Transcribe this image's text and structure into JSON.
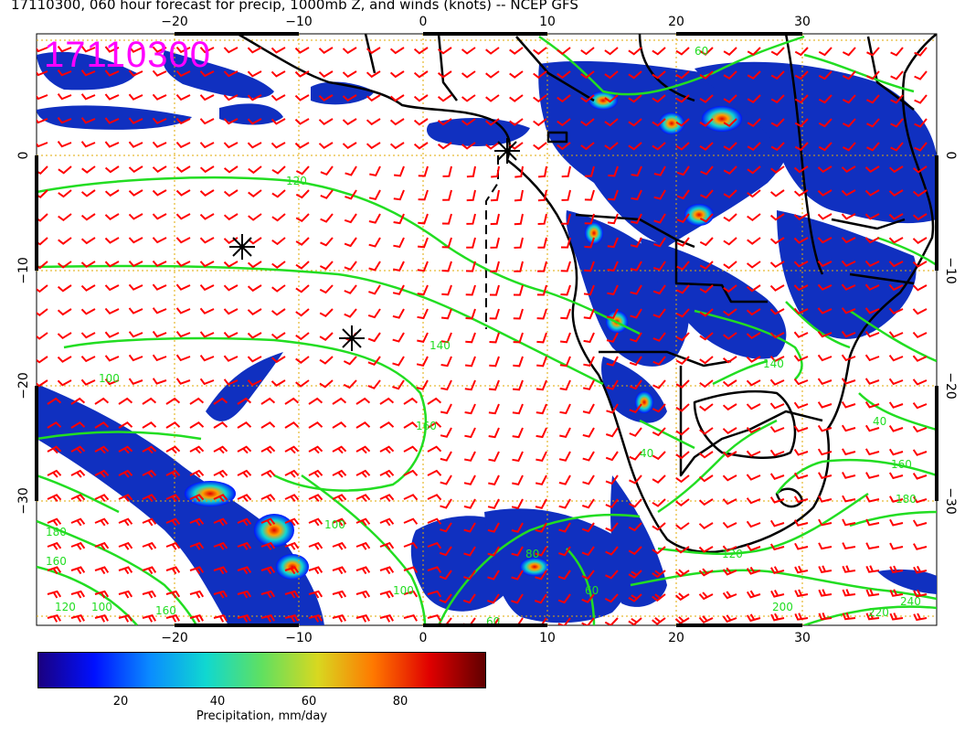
{
  "title": "17110300, 060 hour forecast for precip, 1000mb Z, and winds (knots) -- NCEP GFS",
  "stamp": "17110300",
  "lon_ticks": [
    "−20",
    "−10",
    "0",
    "10",
    "20",
    "30"
  ],
  "lat_ticks_left": [
    "0",
    "−10",
    "−20",
    "−30"
  ],
  "lat_ticks_right": [
    "0",
    "−10",
    "−20",
    "−30"
  ],
  "contour_labels": [
    "120",
    "140",
    "160",
    "160",
    "140",
    "120",
    "100",
    "100",
    "180",
    "160",
    "120",
    "100",
    "80",
    "60",
    "60",
    "60",
    "40",
    "160",
    "180",
    "200",
    "220",
    "240",
    "100",
    "40"
  ],
  "colorbar": {
    "title": "Precipitation, mm/day",
    "ticks": [
      "20",
      "40",
      "60",
      "80"
    ],
    "colors": [
      "#1a0080",
      "#0010ff",
      "#0a8cff",
      "#10d8d0",
      "#60e060",
      "#d8d820",
      "#ff7800",
      "#e00000",
      "#600000"
    ]
  },
  "colors": {
    "wind_barbs": "#ff0000",
    "contours": "#22dd22",
    "coastlines": "#000000",
    "grid": "#e0a800",
    "stamp": "#ff00ff"
  }
}
